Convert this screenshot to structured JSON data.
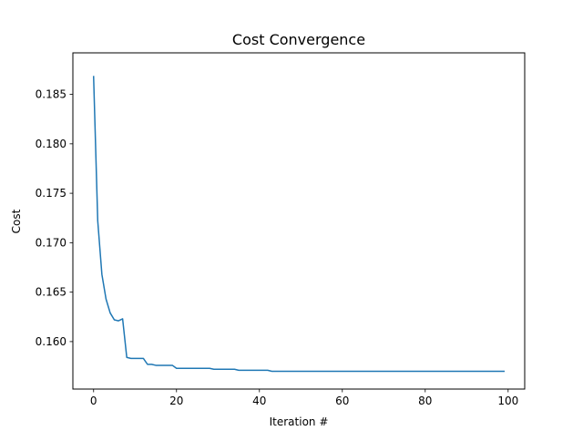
{
  "chart_data": {
    "type": "line",
    "title": "Cost Convergence",
    "xlabel": "Iteration #",
    "ylabel": "Cost",
    "xlim": [
      -5,
      104
    ],
    "ylim": [
      0.1552,
      0.1892
    ],
    "xticks": [
      0,
      20,
      40,
      60,
      80,
      100
    ],
    "yticks": [
      0.16,
      0.165,
      0.17,
      0.175,
      0.18,
      0.185
    ],
    "ytick_labels": [
      "0.160",
      "0.165",
      "0.170",
      "0.175",
      "0.180",
      "0.185"
    ],
    "grid": false,
    "series": [
      {
        "color": "#1f77b4",
        "x": [
          0,
          1,
          2,
          3,
          4,
          5,
          6,
          7,
          8,
          9,
          10,
          11,
          12,
          13,
          14,
          15,
          16,
          17,
          18,
          19,
          20,
          21,
          22,
          23,
          24,
          25,
          26,
          27,
          28,
          29,
          30,
          31,
          32,
          33,
          34,
          35,
          36,
          37,
          38,
          39,
          40,
          41,
          42,
          43,
          44,
          45,
          46,
          47,
          48,
          49,
          50,
          51,
          52,
          53,
          54,
          55,
          56,
          57,
          58,
          59,
          60,
          61,
          62,
          63,
          64,
          65,
          66,
          67,
          68,
          69,
          70,
          71,
          72,
          73,
          74,
          75,
          76,
          77,
          78,
          79,
          80,
          81,
          82,
          83,
          84,
          85,
          86,
          87,
          88,
          89,
          90,
          91,
          92,
          93,
          94,
          95,
          96,
          97,
          98,
          99
        ],
        "y": [
          0.1868,
          0.1722,
          0.1668,
          0.1643,
          0.1629,
          0.1622,
          0.1621,
          0.1623,
          0.1584,
          0.1583,
          0.1583,
          0.1583,
          0.1583,
          0.1577,
          0.1577,
          0.1576,
          0.1576,
          0.1576,
          0.1576,
          0.1576,
          0.1573,
          0.1573,
          0.1573,
          0.1573,
          0.1573,
          0.1573,
          0.1573,
          0.1573,
          0.1573,
          0.1572,
          0.1572,
          0.1572,
          0.1572,
          0.1572,
          0.1572,
          0.1571,
          0.1571,
          0.1571,
          0.1571,
          0.1571,
          0.1571,
          0.1571,
          0.1571,
          0.157,
          0.157,
          0.157,
          0.157,
          0.157,
          0.157,
          0.157,
          0.157,
          0.157,
          0.157,
          0.157,
          0.157,
          0.157,
          0.157,
          0.157,
          0.157,
          0.157,
          0.157,
          0.157,
          0.157,
          0.157,
          0.157,
          0.157,
          0.157,
          0.157,
          0.157,
          0.157,
          0.157,
          0.157,
          0.157,
          0.157,
          0.157,
          0.157,
          0.157,
          0.157,
          0.157,
          0.157,
          0.157,
          0.157,
          0.157,
          0.157,
          0.157,
          0.157,
          0.157,
          0.157,
          0.157,
          0.157,
          0.157,
          0.157,
          0.157,
          0.157,
          0.157,
          0.157,
          0.157,
          0.157,
          0.157,
          0.157
        ]
      }
    ]
  }
}
